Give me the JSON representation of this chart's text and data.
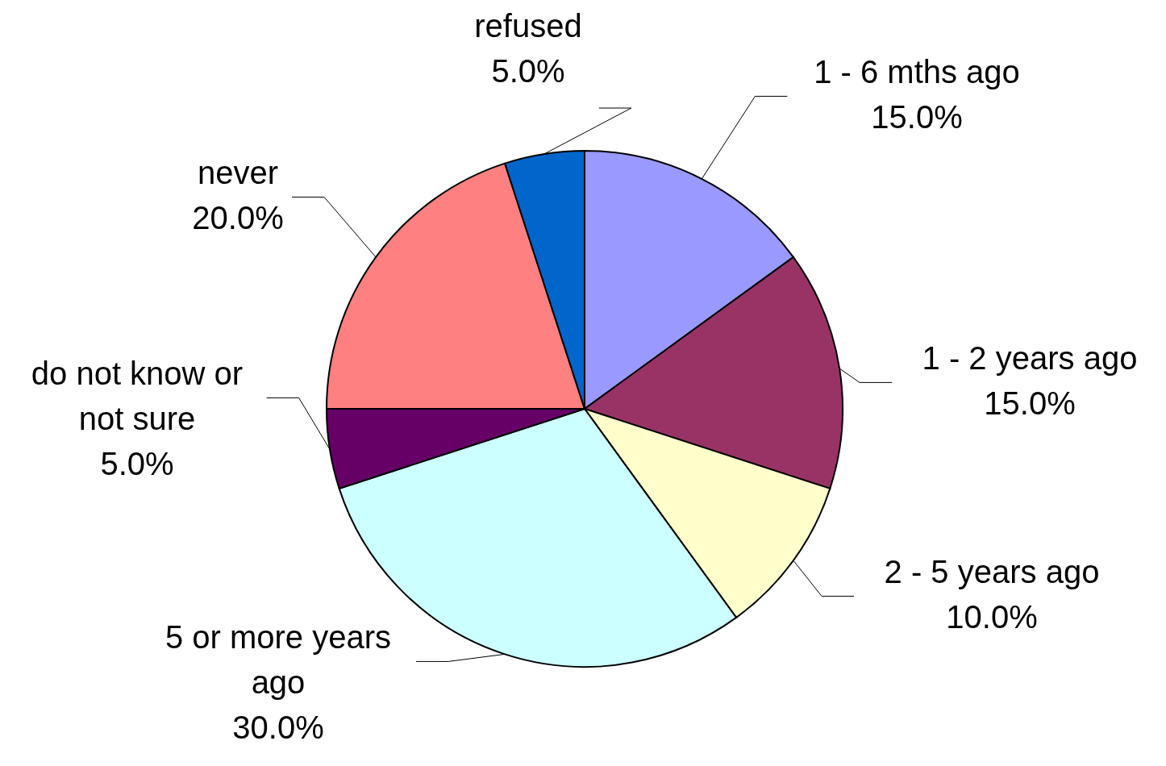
{
  "chart_data": {
    "type": "pie",
    "categories": [
      "1 - 6 mths ago",
      "1 - 2 years ago",
      "2 - 5 years ago",
      "5 or more years ago",
      "do not know or not sure",
      "never",
      "refused"
    ],
    "values": [
      15,
      15,
      10,
      30,
      5,
      20,
      5
    ],
    "value_labels": [
      "15.0%",
      "15.0%",
      "10.0%",
      "30.0%",
      "5.0%",
      "20.0%",
      "5.0%"
    ],
    "colors": [
      "#9999ff",
      "#993366",
      "#ffffcc",
      "#ccffff",
      "#660066",
      "#ff8080",
      "#0066cc"
    ]
  }
}
